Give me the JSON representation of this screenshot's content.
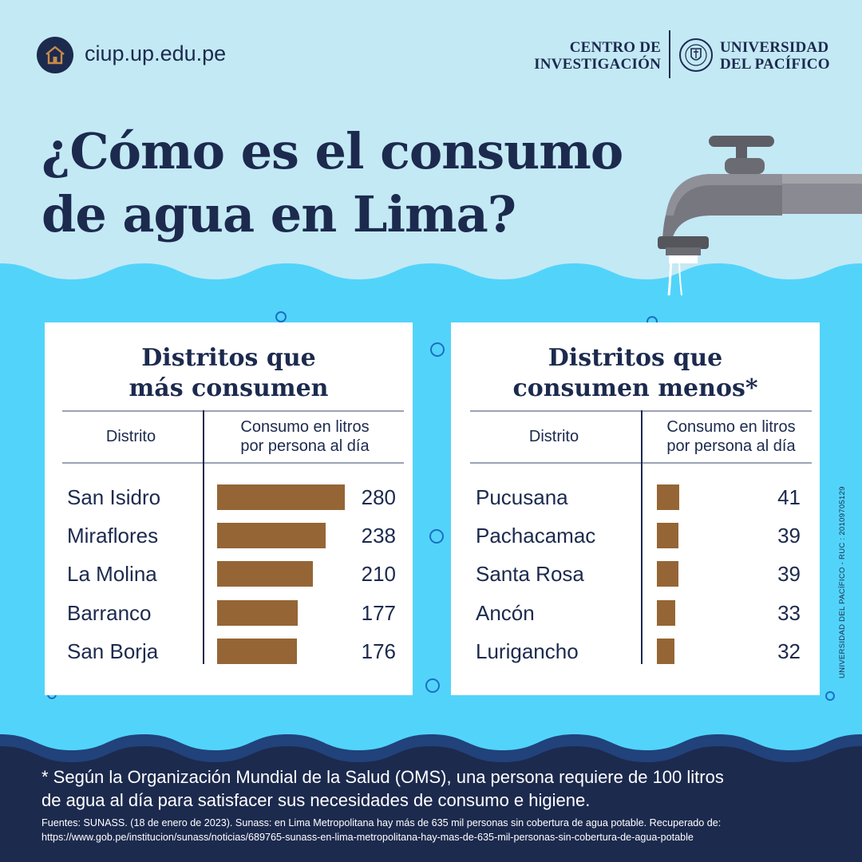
{
  "header": {
    "site_url": "ciup.up.edu.pe",
    "home_icon": "home-icon",
    "logo_left_line1": "CENTRO DE",
    "logo_left_line2": "INVESTIGACIÓN",
    "logo_right_line1": "UNIVERSIDAD",
    "logo_right_line2": "DEL PACÍFICO"
  },
  "title": {
    "line1": "¿Cómo es el consumo",
    "line2": "de agua en Lima?"
  },
  "colors": {
    "navy": "#1c2a4e",
    "sky": "#c3e9f5",
    "water": "#52d4fa",
    "bar": "#956535"
  },
  "chart_data": [
    {
      "type": "bar",
      "title": "Distritos que más consumen",
      "column_headers": [
        "Distrito",
        "Consumo en litros por persona al día"
      ],
      "categories": [
        "San Isidro",
        "Miraflores",
        "La Molina",
        "Barranco",
        "San Borja"
      ],
      "values": [
        280,
        238,
        210,
        177,
        176
      ],
      "value_labels": [
        "280",
        "238",
        "210",
        "177",
        "176"
      ]
    },
    {
      "type": "bar",
      "title": "Distritos que consumen menos*",
      "column_headers": [
        "Distrito",
        "Consumo en litros por persona al día"
      ],
      "categories": [
        "Pucusana",
        "Pachacamac",
        "Santa Rosa",
        "Ancón",
        "Lurigancho"
      ],
      "values": [
        41,
        39,
        39,
        33,
        32
      ],
      "value_labels": [
        "41",
        "39",
        "39",
        "33",
        "32"
      ]
    }
  ],
  "panels": {
    "left": {
      "title_line1": "Distritos que",
      "title_line2": "más consumen",
      "hdr_district": "Distrito",
      "hdr_consumo_1": "Consumo en litros",
      "hdr_consumo_2": "por persona al día"
    },
    "right": {
      "title_line1": "Distritos que",
      "title_line2": "consumen menos*",
      "hdr_district": "Distrito",
      "hdr_consumo_1": "Consumo en litros",
      "hdr_consumo_2": "por persona al día"
    }
  },
  "footer": {
    "note_line1": "* Según la Organización Mundial de la Salud (OMS), una persona requiere de 100 litros",
    "note_line2": "de agua al día para satisfacer sus necesidades de consumo e higiene.",
    "source_line1": "Fuentes: SUNASS. (18 de enero de 2023). Sunass: en Lima Metropolitana hay más de 635 mil personas sin cobertura de agua potable. Recuperado de:",
    "source_line2": "https://www.gob.pe/institucion/sunass/noticias/689765-sunass-en-lima-metropolitana-hay-mas-de-635-mil-personas-sin-cobertura-de-agua-potable"
  },
  "side_text": "UNIVERSIDAD DEL PACÍFICO - RUC : 20109705129"
}
